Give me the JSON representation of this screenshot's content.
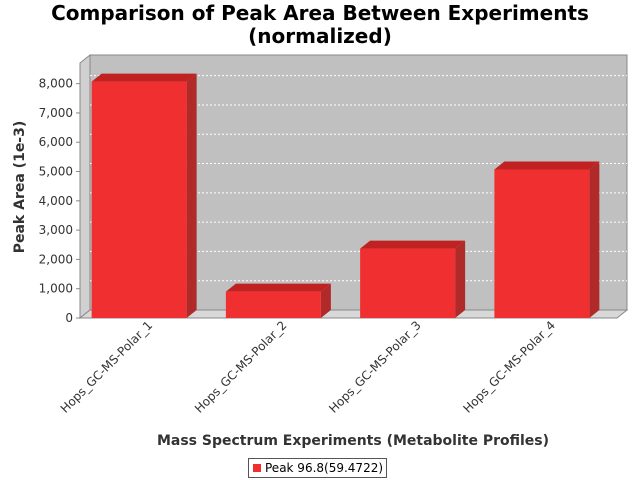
{
  "chart_data": {
    "type": "bar",
    "title_lines": [
      "Comparison of Peak Area Between Experiments",
      "(normalized)"
    ],
    "xlabel": "Mass Spectrum Experiments (Metabolite Profiles)",
    "ylabel": "Peak Area (1e-3)",
    "categories": [
      "Hops_GC-MS-Polar_1",
      "Hops_GC-MS-Polar_2",
      "Hops_GC-MS-Polar_3",
      "Hops_GC-MS-Polar_4"
    ],
    "series": [
      {
        "name": "Peak 96.8(59.4722)",
        "values": [
          8070,
          900,
          2370,
          5070
        ]
      }
    ],
    "ylim": [
      0,
      8500
    ],
    "yticks": [
      0,
      1000,
      2000,
      3000,
      4000,
      5000,
      6000,
      7000,
      8000
    ],
    "ytick_labels": [
      "0",
      "1,000",
      "2,000",
      "3,000",
      "4,000",
      "5,000",
      "6,000",
      "7,000",
      "8,000"
    ],
    "grid": true,
    "legend": "bottom-center",
    "colors": {
      "bar_front": "#f03030",
      "bar_top": "#c02222",
      "bar_side": "#b02a2a",
      "plot_back": "#c0c0c0",
      "plot_floor": "#d8d8d8"
    }
  }
}
